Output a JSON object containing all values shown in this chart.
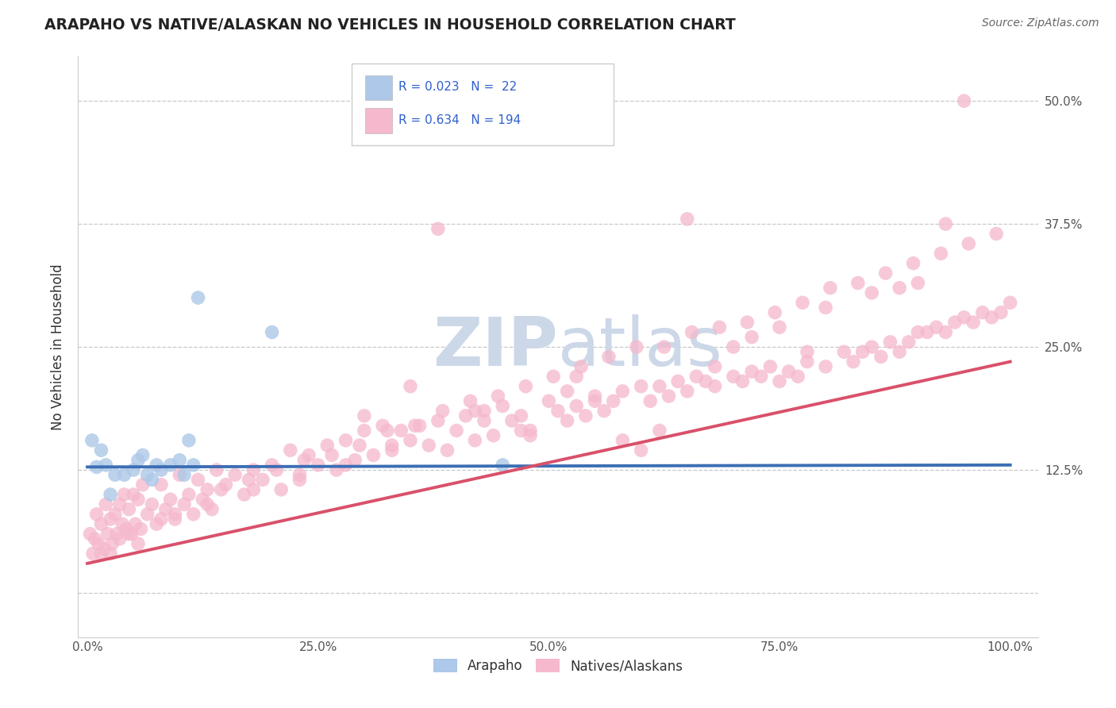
{
  "title": "ARAPAHO VS NATIVE/ALASKAN NO VEHICLES IN HOUSEHOLD CORRELATION CHART",
  "source_text": "Source: ZipAtlas.com",
  "ylabel": "No Vehicles in Household",
  "xlim": [
    -0.01,
    1.03
  ],
  "ylim": [
    -0.045,
    0.545
  ],
  "xtick_vals": [
    0.0,
    0.25,
    0.5,
    0.75,
    1.0
  ],
  "xtick_labels": [
    "0.0%",
    "25.0%",
    "50.0%",
    "75.0%",
    "100.0%"
  ],
  "ytick_vals": [
    0.0,
    0.125,
    0.25,
    0.375,
    0.5
  ],
  "ytick_labels": [
    "",
    "12.5%",
    "25.0%",
    "37.5%",
    "50.0%"
  ],
  "color_blue": "#adc8e8",
  "color_pink": "#f5b8cc",
  "line_blue": "#3c6eb4",
  "line_pink": "#d9506a",
  "legend_color_text": "#3060cc",
  "watermark_color": "#ccd8e8",
  "blue_line_x0": 0.0,
  "blue_line_x1": 1.0,
  "blue_line_y0": 0.128,
  "blue_line_y1": 0.13,
  "pink_line_x0": 0.0,
  "pink_line_x1": 1.0,
  "pink_line_y0": 0.03,
  "pink_line_y1": 0.235,
  "blue_x": [
    0.005,
    0.01,
    0.015,
    0.02,
    0.025,
    0.03,
    0.04,
    0.05,
    0.055,
    0.06,
    0.065,
    0.07,
    0.075,
    0.08,
    0.09,
    0.1,
    0.105,
    0.11,
    0.115,
    0.12,
    0.2,
    0.45
  ],
  "blue_y": [
    0.155,
    0.128,
    0.145,
    0.13,
    0.1,
    0.12,
    0.12,
    0.125,
    0.135,
    0.14,
    0.12,
    0.115,
    0.13,
    0.125,
    0.13,
    0.135,
    0.12,
    0.155,
    0.13,
    0.3,
    0.265,
    0.13
  ],
  "pink_x": [
    0.003,
    0.006,
    0.008,
    0.01,
    0.012,
    0.015,
    0.018,
    0.02,
    0.022,
    0.025,
    0.027,
    0.03,
    0.032,
    0.035,
    0.038,
    0.04,
    0.042,
    0.045,
    0.048,
    0.05,
    0.052,
    0.055,
    0.058,
    0.06,
    0.065,
    0.07,
    0.075,
    0.08,
    0.085,
    0.09,
    0.095,
    0.1,
    0.105,
    0.11,
    0.115,
    0.12,
    0.125,
    0.13,
    0.135,
    0.14,
    0.15,
    0.16,
    0.17,
    0.18,
    0.19,
    0.2,
    0.21,
    0.22,
    0.23,
    0.24,
    0.25,
    0.26,
    0.27,
    0.28,
    0.29,
    0.3,
    0.31,
    0.32,
    0.33,
    0.34,
    0.35,
    0.36,
    0.37,
    0.38,
    0.4,
    0.41,
    0.42,
    0.43,
    0.44,
    0.45,
    0.46,
    0.47,
    0.48,
    0.5,
    0.51,
    0.52,
    0.53,
    0.54,
    0.55,
    0.56,
    0.57,
    0.58,
    0.6,
    0.61,
    0.62,
    0.63,
    0.64,
    0.65,
    0.66,
    0.67,
    0.68,
    0.7,
    0.71,
    0.72,
    0.73,
    0.74,
    0.75,
    0.76,
    0.77,
    0.78,
    0.8,
    0.82,
    0.83,
    0.84,
    0.85,
    0.86,
    0.87,
    0.88,
    0.89,
    0.9,
    0.91,
    0.92,
    0.93,
    0.94,
    0.95,
    0.96,
    0.97,
    0.98,
    0.99,
    1.0,
    0.48,
    0.52,
    0.6,
    0.65,
    0.3,
    0.35,
    0.38,
    0.42,
    0.55,
    0.7,
    0.75,
    0.8,
    0.85,
    0.9,
    0.95,
    0.88,
    0.93,
    0.72,
    0.78,
    0.68,
    0.62,
    0.58,
    0.53,
    0.47,
    0.43,
    0.39,
    0.33,
    0.28,
    0.23,
    0.18,
    0.13,
    0.08,
    0.055,
    0.025,
    0.045,
    0.035,
    0.015,
    0.095,
    0.145,
    0.175,
    0.205,
    0.235,
    0.265,
    0.295,
    0.325,
    0.355,
    0.385,
    0.415,
    0.445,
    0.475,
    0.505,
    0.535,
    0.565,
    0.595,
    0.625,
    0.655,
    0.685,
    0.715,
    0.745,
    0.775,
    0.805,
    0.835,
    0.865,
    0.895,
    0.925,
    0.955,
    0.985
  ],
  "pink_y": [
    0.06,
    0.04,
    0.055,
    0.08,
    0.05,
    0.07,
    0.045,
    0.09,
    0.06,
    0.075,
    0.05,
    0.08,
    0.06,
    0.09,
    0.07,
    0.1,
    0.065,
    0.085,
    0.06,
    0.1,
    0.07,
    0.095,
    0.065,
    0.11,
    0.08,
    0.09,
    0.07,
    0.11,
    0.085,
    0.095,
    0.075,
    0.12,
    0.09,
    0.1,
    0.08,
    0.115,
    0.095,
    0.105,
    0.085,
    0.125,
    0.11,
    0.12,
    0.1,
    0.125,
    0.115,
    0.13,
    0.105,
    0.145,
    0.12,
    0.14,
    0.13,
    0.15,
    0.125,
    0.155,
    0.135,
    0.165,
    0.14,
    0.17,
    0.145,
    0.165,
    0.155,
    0.17,
    0.15,
    0.175,
    0.165,
    0.18,
    0.155,
    0.185,
    0.16,
    0.19,
    0.175,
    0.18,
    0.165,
    0.195,
    0.185,
    0.175,
    0.19,
    0.18,
    0.195,
    0.185,
    0.195,
    0.205,
    0.21,
    0.195,
    0.21,
    0.2,
    0.215,
    0.205,
    0.22,
    0.215,
    0.21,
    0.22,
    0.215,
    0.225,
    0.22,
    0.23,
    0.215,
    0.225,
    0.22,
    0.235,
    0.23,
    0.245,
    0.235,
    0.245,
    0.25,
    0.24,
    0.255,
    0.245,
    0.255,
    0.265,
    0.265,
    0.27,
    0.265,
    0.275,
    0.28,
    0.275,
    0.285,
    0.28,
    0.285,
    0.295,
    0.16,
    0.205,
    0.145,
    0.38,
    0.18,
    0.21,
    0.37,
    0.185,
    0.2,
    0.25,
    0.27,
    0.29,
    0.305,
    0.315,
    0.5,
    0.31,
    0.375,
    0.26,
    0.245,
    0.23,
    0.165,
    0.155,
    0.22,
    0.165,
    0.175,
    0.145,
    0.15,
    0.13,
    0.115,
    0.105,
    0.09,
    0.075,
    0.05,
    0.04,
    0.06,
    0.055,
    0.04,
    0.08,
    0.105,
    0.115,
    0.125,
    0.135,
    0.14,
    0.15,
    0.165,
    0.17,
    0.185,
    0.195,
    0.2,
    0.21,
    0.22,
    0.23,
    0.24,
    0.25,
    0.25,
    0.265,
    0.27,
    0.275,
    0.285,
    0.295,
    0.31,
    0.315,
    0.325,
    0.335,
    0.345,
    0.355,
    0.365
  ]
}
